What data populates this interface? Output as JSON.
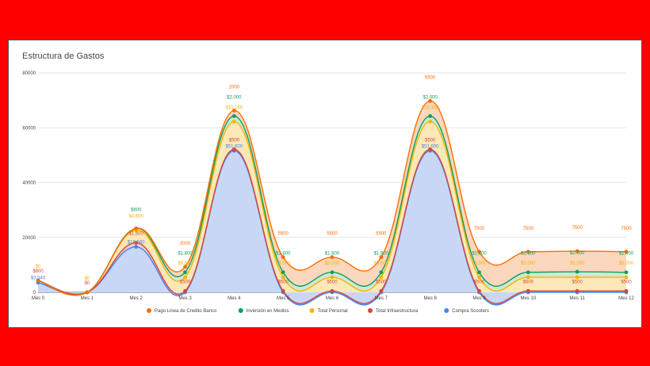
{
  "chart_data": {
    "type": "area",
    "title": "Estructura de Gastos",
    "xlabel": "",
    "ylabel": "",
    "ylim": [
      0,
      80000
    ],
    "yticks": [
      0,
      20000,
      40000,
      60000,
      80000
    ],
    "grid": true,
    "legend_position": "bottom",
    "stacked": true,
    "categories": [
      "Mes 0",
      "Mes 1",
      "Mes 2",
      "Mes 3",
      "Mes 4",
      "Mes 5",
      "Mes 6",
      "Mes 7",
      "Mes 8",
      "Mes 9",
      "Mes 10",
      "Mes 11",
      "Mes 12"
    ],
    "series": [
      {
        "name": "Compra Scooters",
        "color": "#4285f4",
        "fill": "#c9d7f7",
        "values": [
          3540,
          0,
          16560,
          0,
          51600,
          0,
          0,
          0,
          51600,
          0,
          0,
          0,
          0
        ],
        "labels": [
          "$3.540",
          "",
          "$16.560",
          "",
          "$51.600",
          "",
          "",
          "",
          "$51.600",
          "",
          "",
          "",
          ""
        ]
      },
      {
        "name": "Total Infraestructura",
        "color": "#db4437",
        "fill": "#f0c9c4",
        "values": [
          800,
          0,
          1500,
          500,
          500,
          500,
          500,
          500,
          500,
          500,
          500,
          500,
          500
        ],
        "labels": [
          "$800",
          "$0",
          "$1.500",
          "$500",
          "$500",
          "$500",
          "$500",
          "$500",
          "$500",
          "$500",
          "$500",
          "$500",
          "$500"
        ]
      },
      {
        "name": "Total Personal",
        "color": "#f4b400",
        "fill": "#fbe8b8",
        "values": [
          0,
          0,
          4656,
          5000,
          10160,
          5000,
          5000,
          5000,
          10160,
          5000,
          5000,
          5000,
          5000
        ],
        "labels": [
          "$0",
          "$0",
          "$4.656",
          "$5.000",
          "$10.160",
          "$5.000",
          "$5.000",
          "$5.000",
          "$10.160",
          "$5.000",
          "$5.000",
          "$5.000",
          "$5.000"
        ]
      },
      {
        "name": "Inversión en Medios",
        "color": "#0f9d58",
        "fill": "#cfe8d7",
        "values": [
          0,
          0,
          600,
          1800,
          2000,
          1800,
          1800,
          1800,
          2000,
          1800,
          1800,
          2000,
          1800
        ],
        "labels": [
          "",
          "",
          "$600",
          "$1.800",
          "$2.000",
          "$1.800",
          "$1.800",
          "$1.800",
          "$2.000",
          "$1.800",
          "$1.800",
          "$2.000",
          "$1.800"
        ]
      },
      {
        "name": "Pago Linea de Credito Banco",
        "color": "#ff6d00",
        "fill": "#fbd7bd",
        "values": [
          0,
          0,
          0,
          2000,
          2000,
          5500,
          5500,
          5500,
          5500,
          7500,
          7500,
          7500,
          7500
        ],
        "labels": [
          "",
          "",
          "",
          "2000",
          "2000",
          "5500",
          "5500",
          "5500",
          "5500",
          "7500",
          "7500",
          "7500",
          "7500"
        ]
      }
    ],
    "legend_order": [
      "Pago Linea de Credito Banco",
      "Inversión en Medios",
      "Total Personal",
      "Total Infraestructura",
      "Compra Scooters"
    ]
  }
}
